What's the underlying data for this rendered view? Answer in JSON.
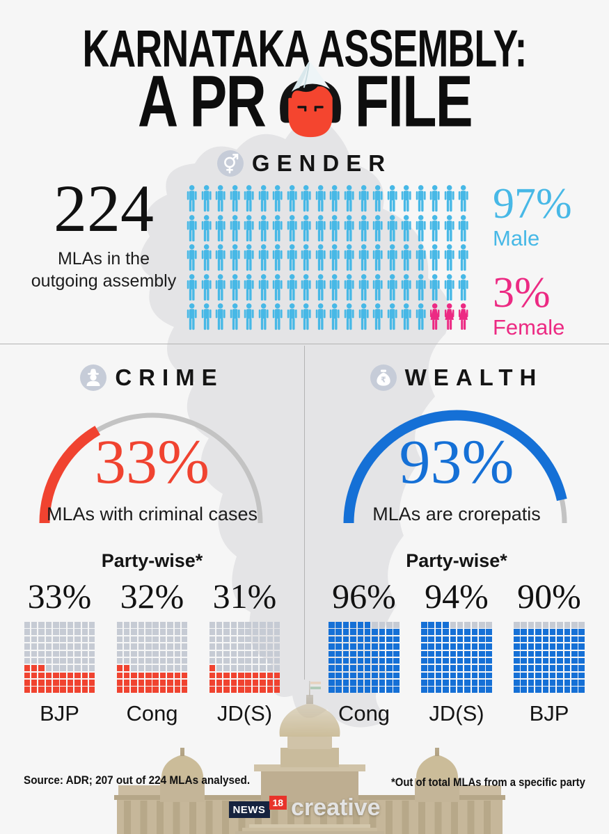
{
  "colors": {
    "background": "#f6f6f6",
    "map": "#e4e4e6",
    "male": "#47b8e6",
    "female": "#ec2a83",
    "crime": "#f04330",
    "wealth": "#1570d6",
    "waffle_empty": "#c6cbd4",
    "divider": "#b3b3b3"
  },
  "title": {
    "line1": "KARNATAKA ASSEMBLY:",
    "line2_left": "A PR",
    "line2_right": "FILE"
  },
  "gender": {
    "heading": "GENDER",
    "total_value": "224",
    "total_label": "MLAs in the outgoing assembly",
    "male_pct": "97%",
    "male_label": "Male",
    "female_pct": "3%",
    "female_label": "Female",
    "grid": {
      "rows": 5,
      "cols": 20,
      "total_icons": 100,
      "female_icons": 3
    }
  },
  "crime": {
    "heading": "CRIME",
    "pct": "33%",
    "pct_value": 33,
    "label": "MLAs with criminal cases",
    "partywise_label": "Party-wise*",
    "parties": [
      {
        "name": "BJP",
        "pct": "33%",
        "value": 33
      },
      {
        "name": "Cong",
        "pct": "32%",
        "value": 32
      },
      {
        "name": "JD(S)",
        "pct": "31%",
        "value": 31
      }
    ]
  },
  "wealth": {
    "heading": "WEALTH",
    "pct": "93%",
    "pct_value": 93,
    "label": "MLAs are crorepatis",
    "partywise_label": "Party-wise*",
    "parties": [
      {
        "name": "Cong",
        "pct": "96%",
        "value": 96
      },
      {
        "name": "JD(S)",
        "pct": "94%",
        "value": 94
      },
      {
        "name": "BJP",
        "pct": "90%",
        "value": 90
      }
    ]
  },
  "footer": {
    "source": "Source: ADR; 207 out of 224 MLAs analysed.",
    "footnote": "*Out of total MLAs from a specific party",
    "logo": {
      "news": "NEWS",
      "num": "18",
      "creative": "creative"
    }
  },
  "chart_data": [
    {
      "type": "pictogram",
      "title": "Gender",
      "units_total": 100,
      "series": [
        {
          "name": "Male",
          "value": 97,
          "color": "#47b8e6"
        },
        {
          "name": "Female",
          "value": 3,
          "color": "#ec2a83"
        }
      ],
      "note": "224 MLAs in the outgoing assembly; 5 rows x 20 person icons"
    },
    {
      "type": "gauge",
      "title": "Crime",
      "value": 33,
      "max": 100,
      "label": "MLAs with criminal cases",
      "color": "#f04330"
    },
    {
      "type": "gauge",
      "title": "Wealth",
      "value": 93,
      "max": 100,
      "label": "MLAs are crorepatis",
      "color": "#1570d6"
    },
    {
      "type": "waffle",
      "title": "Crime party-wise",
      "categories": [
        "BJP",
        "Cong",
        "JD(S)"
      ],
      "values": [
        33,
        32,
        31
      ],
      "color": "#f04330"
    },
    {
      "type": "waffle",
      "title": "Wealth party-wise",
      "categories": [
        "Cong",
        "JD(S)",
        "BJP"
      ],
      "values": [
        96,
        94,
        90
      ],
      "color": "#1570d6"
    }
  ]
}
